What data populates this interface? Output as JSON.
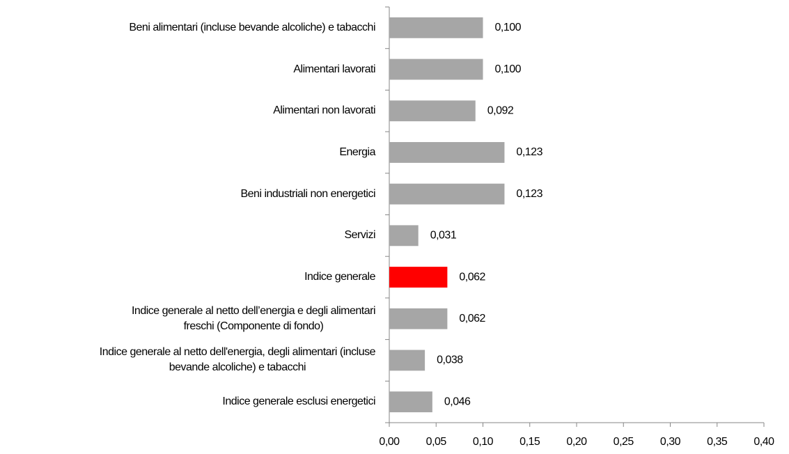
{
  "chart_data": {
    "type": "hbar",
    "categories": [
      "Beni alimentari (incluse bevande alcoliche) e tabacchi",
      "Alimentari lavorati",
      "Alimentari non lavorati",
      "Energia",
      "Beni industriali non energetici",
      "Servizi",
      "Indice generale",
      "Indice generale al netto dell’energia e degli alimentari\nfreschi (Componente di fondo)",
      "Indice generale al netto dell'energia, degli alimentari (incluse\nbevande alcoliche) e tabacchi",
      "Indice generale esclusi energetici"
    ],
    "values": [
      0.1,
      0.1,
      0.092,
      0.123,
      0.123,
      0.031,
      0.062,
      0.062,
      0.038,
      0.046
    ],
    "value_labels": [
      "0,100",
      "0,100",
      "0,092",
      "0,123",
      "0,123",
      "0,031",
      "0,062",
      "0,062",
      "0,038",
      "0,046"
    ],
    "colors": [
      "#a6a6a6",
      "#a6a6a6",
      "#a6a6a6",
      "#a6a6a6",
      "#a6a6a6",
      "#a6a6a6",
      "#ff0000",
      "#a6a6a6",
      "#a6a6a6",
      "#a6a6a6"
    ],
    "xlim": [
      0,
      0.4
    ],
    "xticks": [
      {
        "value": 0,
        "label": "0,00"
      },
      {
        "value": 0.05,
        "label": "0,05"
      },
      {
        "value": 0.1,
        "label": "0,10"
      },
      {
        "value": 0.15,
        "label": "0,15"
      },
      {
        "value": 0.2,
        "label": "0,20"
      },
      {
        "value": 0.25,
        "label": "0,25"
      },
      {
        "value": 0.3,
        "label": "0,30"
      },
      {
        "value": 0.35,
        "label": "0,35"
      },
      {
        "value": 0.4,
        "label": "0,40"
      }
    ],
    "grid": false
  }
}
